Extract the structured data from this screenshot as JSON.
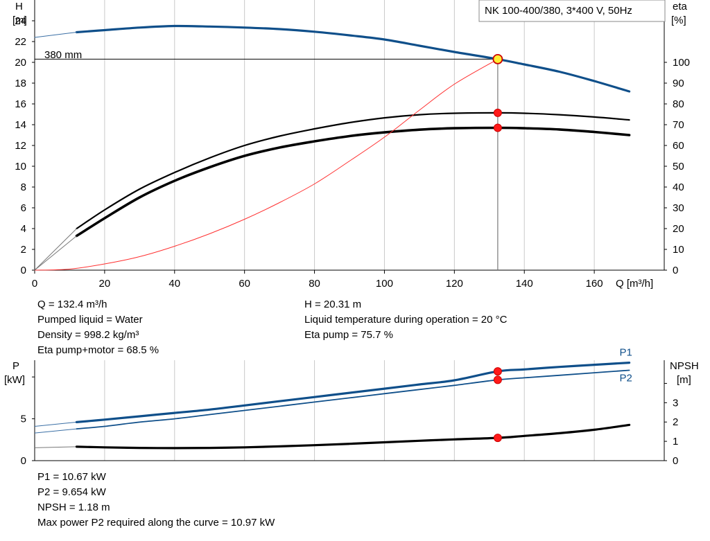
{
  "title_box": "NK 100-400/380, 3*400 V, 50Hz",
  "chart_data": [
    {
      "id": "qh",
      "type": "line",
      "left_axis": {
        "label_lines": [
          "H",
          "[m]"
        ],
        "ylim": [
          0,
          26
        ],
        "ticks": [
          0,
          2,
          4,
          6,
          8,
          10,
          12,
          14,
          16,
          18,
          20,
          22,
          24
        ]
      },
      "right_axis": {
        "label_lines": [
          "eta",
          "[%]"
        ],
        "ylim": [
          0,
          130
        ],
        "ticks": [
          0,
          10,
          20,
          30,
          40,
          50,
          60,
          70,
          80,
          90,
          100
        ]
      },
      "x_axis": {
        "label": "Q [m³/h]",
        "xlim": [
          0,
          180
        ],
        "ticks": [
          0,
          20,
          40,
          60,
          80,
          100,
          120,
          140,
          160
        ],
        "grid_step": 20
      },
      "curve_label": "380 mm",
      "series": [
        {
          "key": "head",
          "axis": "left",
          "color": "#0f4f8a",
          "x": [
            12,
            20,
            30,
            40,
            50,
            60,
            70,
            80,
            90,
            100,
            110,
            120,
            132.4,
            140,
            150,
            160,
            170
          ],
          "y": [
            22.9,
            23.1,
            23.35,
            23.5,
            23.45,
            23.35,
            23.2,
            22.95,
            22.6,
            22.2,
            21.6,
            21.0,
            20.31,
            19.8,
            19.1,
            18.2,
            17.2
          ]
        },
        {
          "key": "head-extension",
          "axis": "left",
          "color": "#3a6fa5",
          "x": [
            0,
            12
          ],
          "y": [
            22.4,
            22.9
          ]
        },
        {
          "key": "eta-pump",
          "axis": "right",
          "color": "#000000",
          "x": [
            12,
            20,
            30,
            40,
            50,
            60,
            70,
            80,
            90,
            100,
            110,
            120,
            132.4,
            140,
            150,
            160,
            170
          ],
          "y": [
            20,
            29,
            39,
            47,
            54,
            60,
            64.5,
            68,
            71,
            73.3,
            74.8,
            75.5,
            75.7,
            75.5,
            74.8,
            73.7,
            72.3
          ]
        },
        {
          "key": "eta-pump-motor",
          "axis": "right",
          "color": "#000000",
          "x": [
            12,
            20,
            30,
            40,
            50,
            60,
            70,
            80,
            90,
            100,
            110,
            120,
            132.4,
            140,
            150,
            160,
            170
          ],
          "y": [
            16.5,
            25,
            35,
            43,
            49.5,
            55,
            59,
            62,
            64.5,
            66.3,
            67.6,
            68.3,
            68.5,
            68.3,
            67.7,
            66.5,
            65
          ]
        },
        {
          "key": "system-curve",
          "axis": "left",
          "color": "#ff3030",
          "x": [
            0,
            10,
            20,
            30,
            40,
            50,
            60,
            70,
            80,
            90,
            100,
            110,
            120,
            132.4
          ],
          "y": [
            0,
            0.1,
            0.6,
            1.3,
            2.3,
            3.5,
            4.9,
            6.5,
            8.3,
            10.5,
            12.8,
            15.4,
            17.9,
            20.31
          ]
        }
      ],
      "duty_point": {
        "q": 132.4,
        "h": 20.31
      },
      "markers_right": [
        75.7,
        68.5
      ]
    },
    {
      "id": "power",
      "type": "line",
      "left_axis": {
        "label_lines": [
          "P",
          "[kW]"
        ],
        "ylim": [
          0,
          12
        ],
        "ticks": [
          0,
          5
        ],
        "minor_ticks": [
          10
        ]
      },
      "right_axis": {
        "label_lines": [
          "NPSH",
          "[m]"
        ],
        "ylim": [
          0,
          5.2
        ],
        "ticks": [
          0,
          1,
          2,
          3
        ],
        "minor_ticks": [
          4
        ]
      },
      "x_axis": {
        "xlim": [
          0,
          180
        ],
        "grid_step": 20
      },
      "series": [
        {
          "key": "p1",
          "label": "P1",
          "axis": "left",
          "color": "#0f4f8a",
          "x": [
            12,
            20,
            30,
            40,
            50,
            60,
            70,
            80,
            90,
            100,
            110,
            120,
            132.4,
            140,
            150,
            160,
            170
          ],
          "y": [
            4.6,
            4.9,
            5.3,
            5.7,
            6.1,
            6.6,
            7.1,
            7.6,
            8.1,
            8.6,
            9.1,
            9.6,
            10.67,
            10.9,
            11.2,
            11.45,
            11.7
          ]
        },
        {
          "key": "p2",
          "label": "P2",
          "axis": "left",
          "color": "#0f4f8a",
          "x": [
            12,
            20,
            30,
            40,
            50,
            60,
            70,
            80,
            90,
            100,
            110,
            120,
            132.4,
            140,
            150,
            160,
            170
          ],
          "y": [
            3.8,
            4.1,
            4.6,
            5.0,
            5.5,
            6.0,
            6.5,
            7.0,
            7.5,
            8.0,
            8.5,
            9.0,
            9.654,
            9.9,
            10.2,
            10.5,
            10.8
          ]
        },
        {
          "key": "npsh",
          "axis": "right",
          "color": "#000000",
          "x": [
            12,
            20,
            30,
            40,
            50,
            60,
            70,
            80,
            90,
            100,
            110,
            120,
            132.4,
            140,
            150,
            160,
            170
          ],
          "y": [
            0.72,
            0.69,
            0.66,
            0.65,
            0.66,
            0.69,
            0.74,
            0.8,
            0.87,
            0.95,
            1.03,
            1.1,
            1.18,
            1.28,
            1.42,
            1.6,
            1.85
          ]
        }
      ],
      "markers": [
        {
          "axis": "left",
          "y": 10.67
        },
        {
          "axis": "left",
          "y": 9.654
        },
        {
          "axis": "right",
          "y": 1.18
        }
      ]
    }
  ],
  "info_top_left": [
    "Q = 132.4 m³/h",
    "Pumped liquid = Water",
    "Density = 998.2 kg/m³",
    "Eta pump+motor = 68.5 %"
  ],
  "info_top_right": [
    "H = 20.31 m",
    "Liquid temperature during operation = 20 °C",
    "Eta pump = 75.7 %"
  ],
  "info_bottom": [
    "P1 = 10.67 kW",
    "P2 = 9.654 kW",
    "NPSH = 1.18 m",
    "Max power P2 required along the curve = 10.97 kW"
  ]
}
